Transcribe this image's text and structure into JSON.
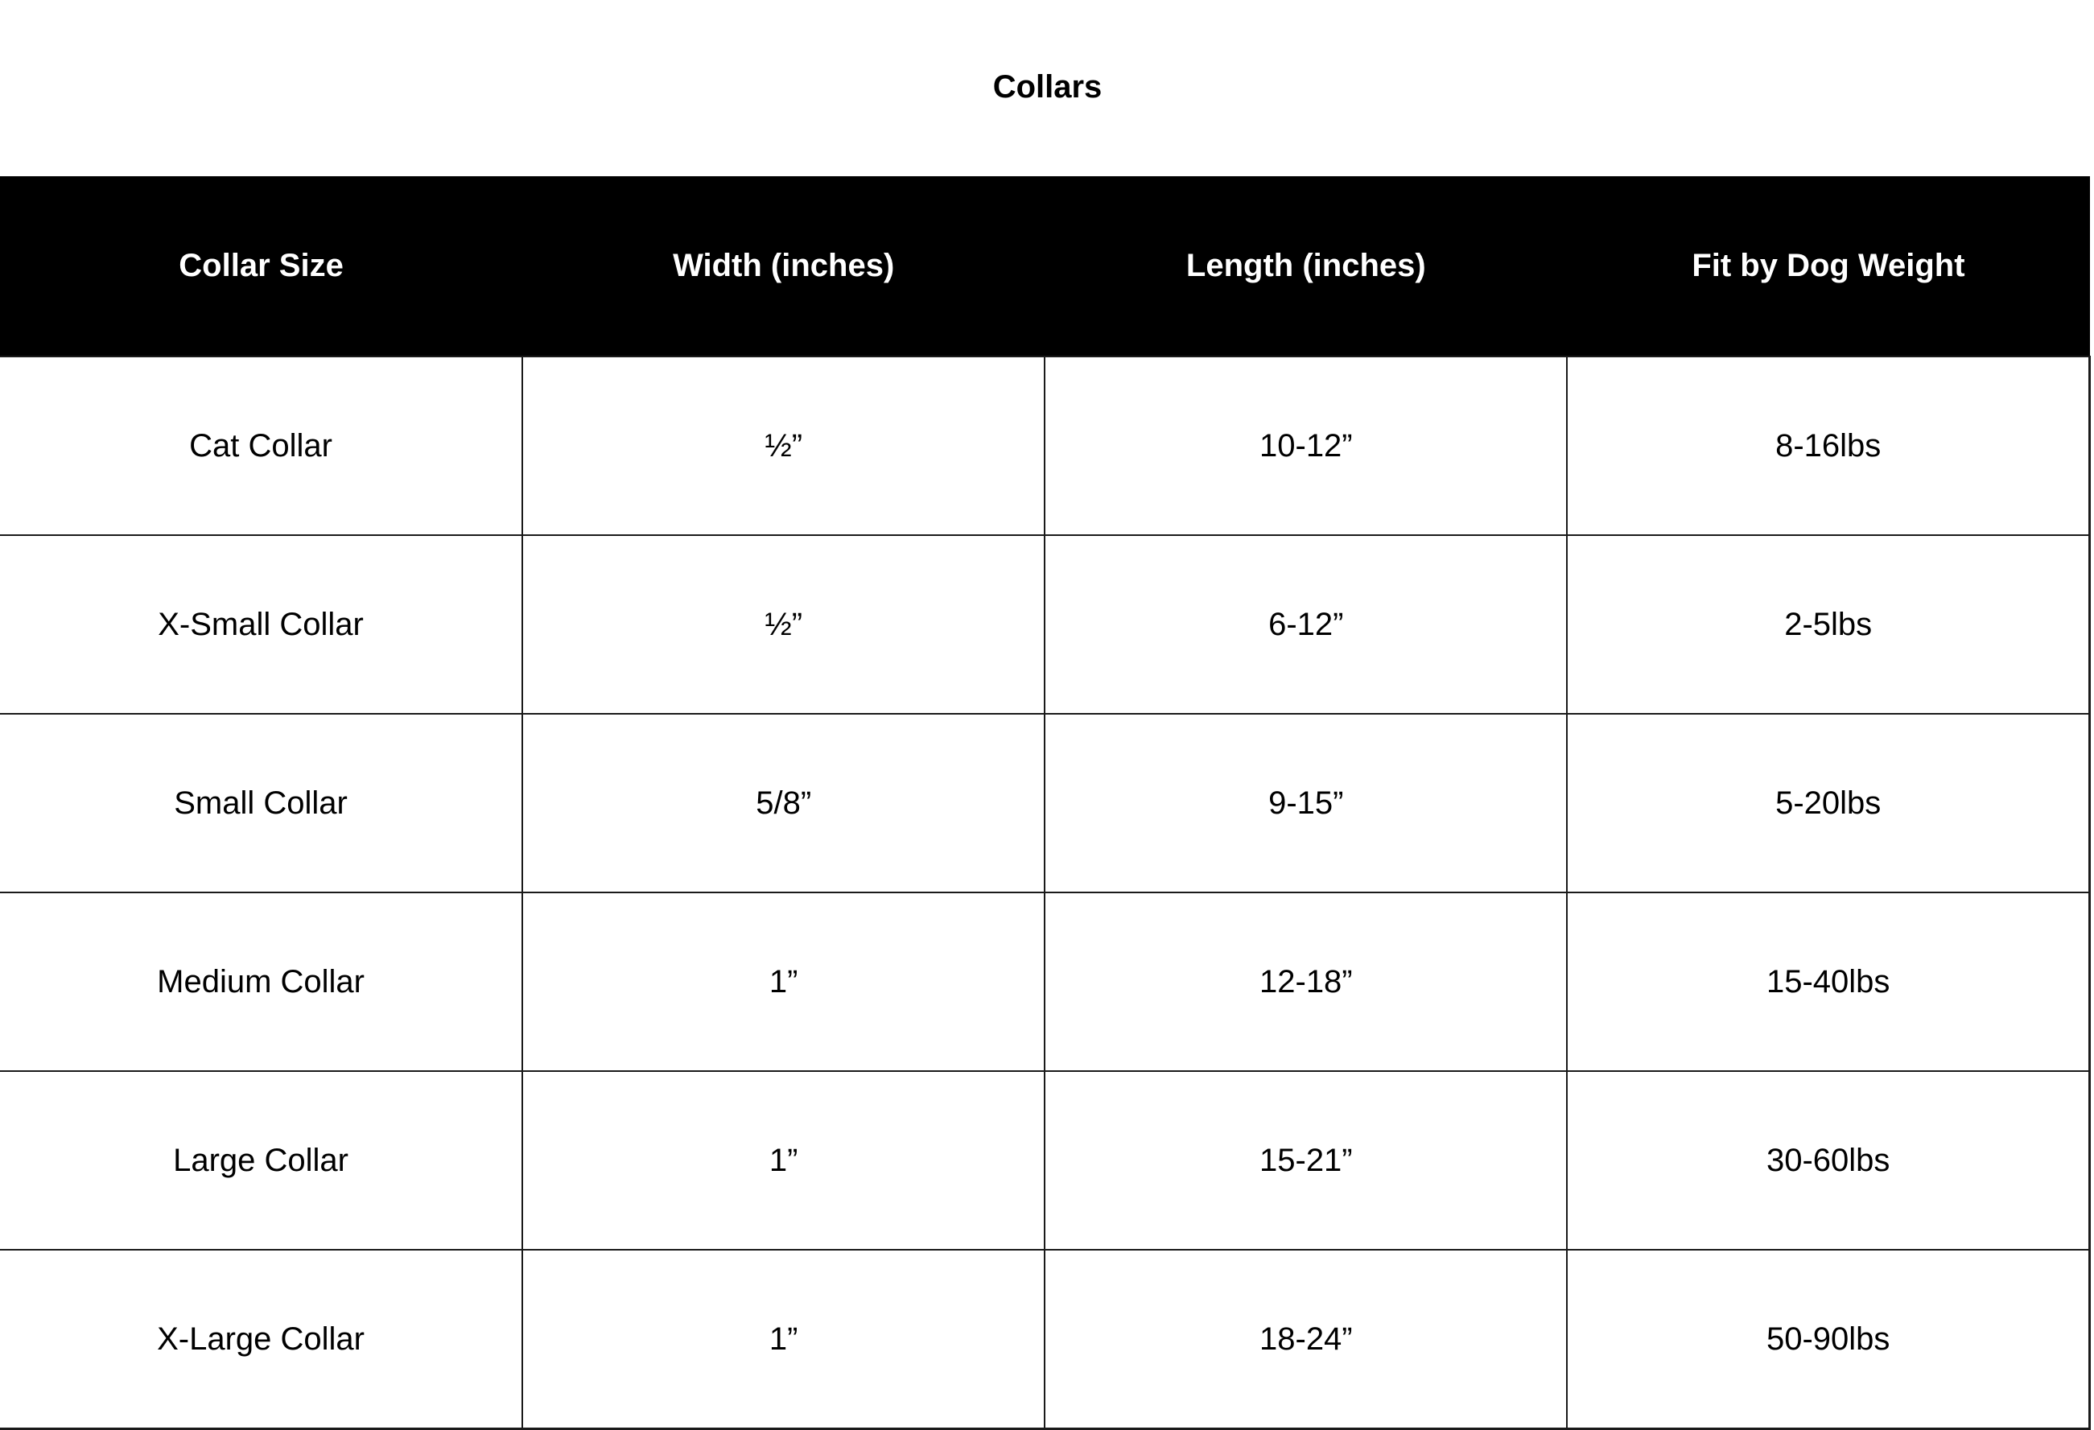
{
  "title": "Collars",
  "table": {
    "headers": [
      "Collar Size",
      "Width (inches)",
      "Length (inches)",
      "Fit by Dog Weight"
    ],
    "rows": [
      [
        "Cat Collar",
        "½”",
        "10-12”",
        "8-16lbs"
      ],
      [
        "X-Small Collar",
        "½”",
        "6-12”",
        "2-5lbs"
      ],
      [
        "Small Collar",
        "5/8”",
        "9-15”",
        "5-20lbs"
      ],
      [
        "Medium Collar",
        "1”",
        "12-18”",
        "15-40lbs"
      ],
      [
        "Large Collar",
        "1”",
        "15-21”",
        "30-60lbs"
      ],
      [
        "X-Large Collar",
        "1”",
        "18-24”",
        "50-90lbs"
      ]
    ]
  }
}
